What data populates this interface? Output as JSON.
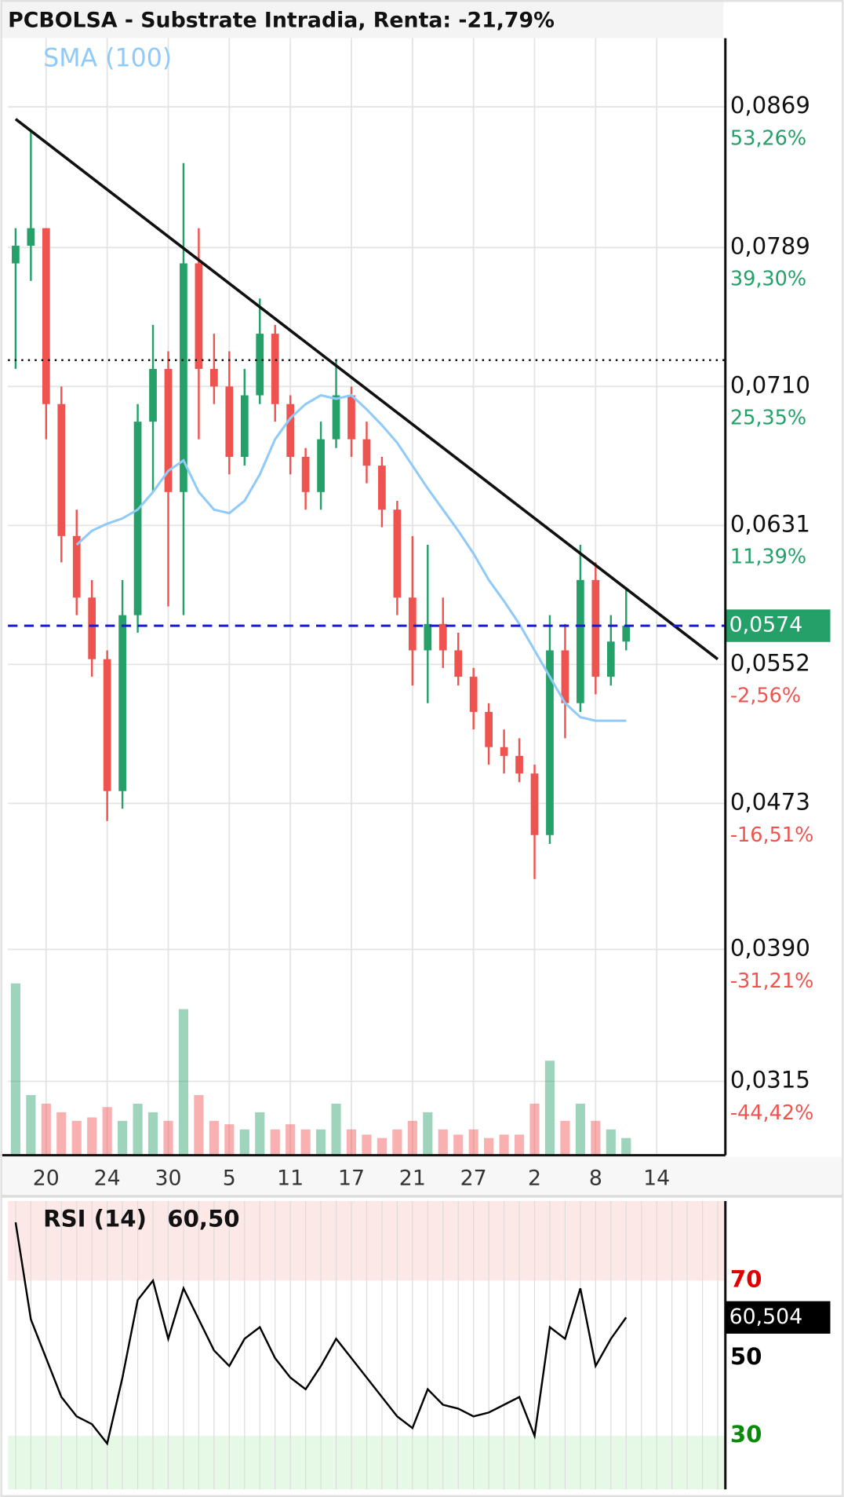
{
  "chart_data": [
    {
      "type": "candlestick",
      "title": "PCBOLSA - Substrate Intradia, Renta: -21,79%",
      "categories": [
        null,
        null,
        "20",
        null,
        null,
        null,
        "24",
        null,
        null,
        null,
        "30",
        null,
        null,
        null,
        "5",
        null,
        null,
        null,
        "11",
        null,
        null,
        null,
        "17",
        null,
        null,
        null,
        "21",
        null,
        null,
        null,
        "27",
        null,
        null,
        null,
        "2",
        null,
        null,
        null,
        "8",
        null,
        null,
        null,
        "14",
        null,
        null,
        null,
        null
      ],
      "open": [
        0.078,
        0.079,
        0.08,
        0.07,
        0.0625,
        0.059,
        0.0555,
        0.048,
        0.058,
        0.069,
        0.072,
        0.065,
        0.078,
        0.072,
        0.071,
        0.067,
        0.0705,
        0.074,
        0.07,
        0.067,
        0.065,
        0.068,
        0.0705,
        0.068,
        0.0665,
        0.064,
        0.059,
        0.056,
        0.0575,
        0.056,
        0.0545,
        0.0525,
        0.0505,
        0.05,
        0.049,
        0.0455,
        0.056,
        0.053,
        0.06,
        0.0545,
        0.0565,
        null,
        null,
        null,
        null,
        null,
        null
      ],
      "high": [
        0.08,
        0.0855,
        0.08,
        0.071,
        0.064,
        0.06,
        0.056,
        0.06,
        0.07,
        0.0745,
        0.073,
        0.0837,
        0.08,
        0.074,
        0.073,
        0.072,
        0.076,
        0.0745,
        0.0705,
        0.0675,
        0.069,
        0.0725,
        0.071,
        0.069,
        0.067,
        0.0645,
        0.0625,
        0.062,
        0.059,
        0.057,
        0.055,
        0.053,
        0.0515,
        0.051,
        0.0495,
        0.058,
        0.0575,
        0.062,
        0.061,
        0.058,
        0.0596,
        null,
        null,
        null,
        null,
        null,
        null
      ],
      "low": [
        0.072,
        0.077,
        0.068,
        0.061,
        0.058,
        0.0545,
        0.0463,
        0.047,
        0.057,
        0.065,
        0.0585,
        0.058,
        0.068,
        0.07,
        0.066,
        0.0665,
        0.07,
        0.069,
        0.066,
        0.064,
        0.064,
        0.0675,
        0.067,
        0.0655,
        0.063,
        0.058,
        0.054,
        0.053,
        0.055,
        0.054,
        0.0515,
        0.0495,
        0.049,
        0.0485,
        0.043,
        0.045,
        0.051,
        0.0525,
        0.0535,
        0.054,
        0.056,
        null,
        null,
        null,
        null,
        null,
        null
      ],
      "close": [
        0.079,
        0.08,
        0.07,
        0.0625,
        0.059,
        0.0555,
        0.048,
        0.058,
        0.069,
        0.072,
        0.065,
        0.078,
        0.072,
        0.071,
        0.067,
        0.0705,
        0.074,
        0.07,
        0.067,
        0.065,
        0.068,
        0.0705,
        0.068,
        0.0665,
        0.064,
        0.059,
        0.056,
        0.0575,
        0.056,
        0.0545,
        0.0525,
        0.0505,
        0.05,
        0.049,
        0.0455,
        0.056,
        0.053,
        0.06,
        0.0545,
        0.0565,
        0.0574,
        null,
        null,
        null,
        null,
        null,
        null
      ],
      "volume": [
        100,
        35,
        30,
        25,
        20,
        22,
        28,
        20,
        30,
        25,
        20,
        85,
        35,
        20,
        18,
        15,
        25,
        15,
        18,
        15,
        15,
        30,
        15,
        12,
        10,
        15,
        20,
        25,
        15,
        12,
        15,
        10,
        12,
        12,
        30,
        55,
        20,
        30,
        20,
        15,
        10,
        null,
        null,
        null,
        null,
        null,
        null
      ],
      "sma": {
        "name": "SMA (100)",
        "color": "#90caf9",
        "values": [
          null,
          null,
          null,
          null,
          0.062,
          0.0628,
          0.0632,
          0.0635,
          0.064,
          0.065,
          0.0662,
          0.0668,
          0.065,
          0.064,
          0.0638,
          0.0645,
          0.066,
          0.068,
          0.0692,
          0.07,
          0.0705,
          0.0703,
          0.0705,
          0.0697,
          0.0688,
          0.0678,
          0.0665,
          0.0652,
          0.064,
          0.0628,
          0.0615,
          0.06,
          0.0588,
          0.0575,
          0.056,
          0.0545,
          0.053,
          0.0522,
          0.052,
          0.052,
          0.052,
          null,
          null,
          null,
          null,
          null,
          null
        ]
      },
      "ylim": [
        0.0273,
        0.0908
      ],
      "yticks": [
        {
          "value": 0.0869,
          "label": "0,0869"
        },
        {
          "value": 0.0789,
          "label": "0,0789"
        },
        {
          "value": 0.071,
          "label": "0,0710"
        },
        {
          "value": 0.0631,
          "label": "0,0631"
        },
        {
          "value": 0.0552,
          "label": "0,0552"
        },
        {
          "value": 0.0473,
          "label": "0,0473"
        },
        {
          "value": 0.039,
          "label": "0,0390"
        },
        {
          "value": 0.0315,
          "label": "0,0315"
        }
      ],
      "ytick_change_labels": [
        "53,26%",
        "39,30%",
        "25,35%",
        "11,39%",
        "-2,56%",
        "-16,51%",
        "-31,21%",
        "-44,42%"
      ],
      "last_price": {
        "value": 0.0574,
        "label": "0,0574"
      },
      "reference_line": 0.0725,
      "trendline": {
        "x": [
          0,
          46
        ],
        "y": [
          0.0862,
          0.0555
        ]
      },
      "up_color": "#26a069",
      "down_color": "#ef5350"
    },
    {
      "type": "line",
      "title": "RSI (14)",
      "value_label": "60,50",
      "last_value_label": "60,504",
      "color": "#000000",
      "values": [
        85,
        60,
        50,
        40,
        35,
        33,
        28,
        45,
        65,
        70,
        55,
        68,
        60,
        52,
        48,
        55,
        58,
        50,
        45,
        42,
        48,
        55,
        50,
        45,
        40,
        35,
        32,
        42,
        38,
        37,
        35,
        36,
        38,
        40,
        30,
        58,
        55,
        68,
        48,
        55,
        60.504,
        null,
        null,
        null,
        null,
        null,
        null
      ],
      "ylim": [
        16.2,
        90.5
      ],
      "yticks": [
        70,
        50,
        30
      ],
      "ytick_colors": [
        "#e00000",
        "#000000",
        "#0a8a0a"
      ]
    }
  ]
}
